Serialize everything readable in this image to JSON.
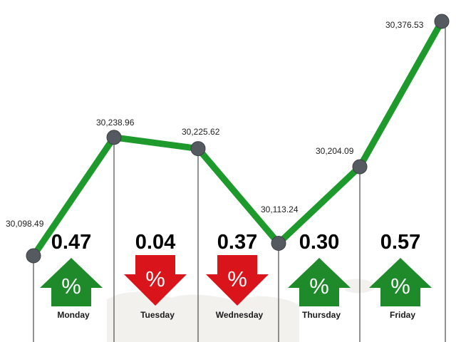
{
  "chart_data": {
    "type": "line",
    "title": "",
    "xlabel": "",
    "ylabel": "",
    "categories": [
      "Monday",
      "Tuesday",
      "Wednesday",
      "Thursday",
      "Friday"
    ],
    "ylim": [
      30098.49,
      30376.53
    ],
    "grid": false,
    "series": [
      {
        "points": [
          {
            "label": "30,098.49",
            "value": 30098.49
          },
          {
            "label": "30,238.96",
            "value": 30238.96
          },
          {
            "label": "30,225.62",
            "value": 30225.62
          },
          {
            "label": "30,113.24",
            "value": 30113.24
          },
          {
            "label": "30,204.09",
            "value": 30204.09
          },
          {
            "label": "30,376.53",
            "value": 30376.53
          }
        ]
      }
    ],
    "daily_change": [
      {
        "day": "Monday",
        "change": "0.47",
        "direction": "up",
        "symbol": "%"
      },
      {
        "day": "Tuesday",
        "change": "0.04",
        "direction": "down",
        "symbol": "%"
      },
      {
        "day": "Wednesday",
        "change": "0.37",
        "direction": "down",
        "symbol": "%"
      },
      {
        "day": "Thursday",
        "change": "0.30",
        "direction": "up",
        "symbol": "%"
      },
      {
        "day": "Friday",
        "change": "0.57",
        "direction": "up",
        "symbol": "%"
      }
    ],
    "colors": {
      "line": "#1e9a2d",
      "marker": "#555a60",
      "up": "#1e8a2a",
      "down": "#d9141b"
    }
  }
}
